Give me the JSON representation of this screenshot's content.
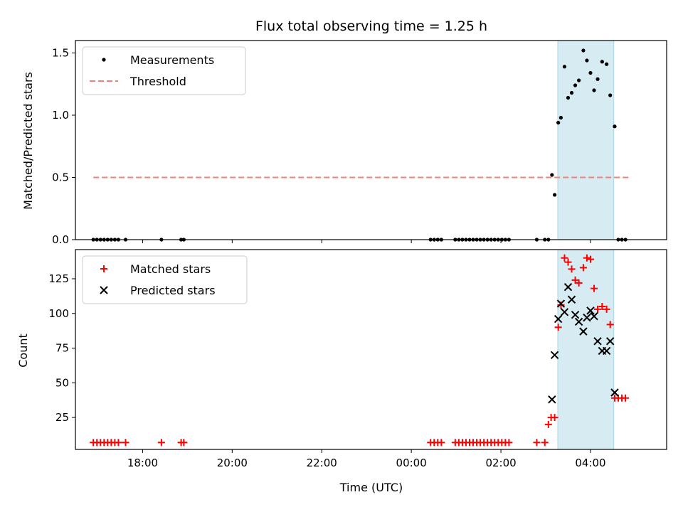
{
  "chart_data": [
    {
      "type": "scatter",
      "title": "Flux total observing time = 1.25 h",
      "xlabel": "",
      "ylabel": "Matched/Predicted stars",
      "x_unit": "hours since 00:00 UTC",
      "xlim": [
        -7.5,
        5.7
      ],
      "ylim": [
        0,
        1.6
      ],
      "yticks": [
        0.0,
        0.5,
        1.0,
        1.5
      ],
      "ytick_labels": [
        "0.0",
        "0.5",
        "1.0",
        "1.5"
      ],
      "highlight_span": [
        3.27,
        4.52
      ],
      "legend": {
        "placement": "top-left",
        "entries": [
          "Measurements",
          "Threshold"
        ]
      },
      "threshold": {
        "name": "Threshold",
        "y": 0.5,
        "x_range": [
          -7.1,
          4.85
        ],
        "color": "#f08080"
      },
      "series": [
        {
          "name": "Measurements",
          "color": "#000000",
          "x": [
            -7.1,
            -7.02,
            -6.94,
            -6.86,
            -6.78,
            -6.7,
            -6.62,
            -6.54,
            -6.38,
            -5.58,
            -5.14,
            -5.08,
            0.43,
            0.51,
            0.59,
            0.67,
            0.98,
            1.06,
            1.14,
            1.22,
            1.3,
            1.38,
            1.46,
            1.54,
            1.62,
            1.7,
            1.78,
            1.86,
            1.94,
            2.02,
            2.1,
            2.18,
            2.8,
            2.98,
            3.06,
            3.14,
            3.2,
            3.28,
            3.34,
            3.42,
            3.5,
            3.58,
            3.66,
            3.74,
            3.84,
            3.92,
            4.0,
            4.08,
            4.16,
            4.26,
            4.36,
            4.44,
            4.54,
            4.62,
            4.7,
            4.78
          ],
          "y": [
            0,
            0,
            0,
            0,
            0,
            0,
            0,
            0,
            0,
            0,
            0,
            0,
            0,
            0,
            0,
            0,
            0,
            0,
            0,
            0,
            0,
            0,
            0,
            0,
            0,
            0,
            0,
            0,
            0,
            0,
            0,
            0,
            0,
            0,
            0,
            0.52,
            0.36,
            0.94,
            0.98,
            1.39,
            1.14,
            1.18,
            1.24,
            1.28,
            1.52,
            1.44,
            1.34,
            1.2,
            1.29,
            1.43,
            1.41,
            1.16,
            0.91,
            0,
            0,
            0
          ]
        }
      ]
    },
    {
      "type": "scatter",
      "title": "",
      "xlabel": "Time (UTC)",
      "ylabel": "Count",
      "x_unit": "hours since 00:00 UTC",
      "xlim": [
        -7.5,
        5.7
      ],
      "ylim": [
        2,
        146
      ],
      "xticks": [
        -6,
        -4,
        -2,
        0,
        2,
        4
      ],
      "xtick_labels": [
        "18:00",
        "20:00",
        "22:00",
        "00:00",
        "02:00",
        "04:00"
      ],
      "yticks": [
        25,
        50,
        75,
        100,
        125
      ],
      "ytick_labels": [
        "25",
        "50",
        "75",
        "100",
        "125"
      ],
      "highlight_span": [
        3.27,
        4.52
      ],
      "legend": {
        "placement": "top-left",
        "entries": [
          "Matched stars",
          "Predicted stars"
        ]
      },
      "series": [
        {
          "name": "Matched stars",
          "marker": "+",
          "color": "#ff0000",
          "x": [
            -7.1,
            -7.02,
            -6.94,
            -6.86,
            -6.78,
            -6.7,
            -6.62,
            -6.54,
            -6.38,
            -5.58,
            -5.14,
            -5.08,
            0.43,
            0.51,
            0.59,
            0.67,
            0.98,
            1.06,
            1.14,
            1.22,
            1.3,
            1.38,
            1.46,
            1.54,
            1.62,
            1.7,
            1.78,
            1.86,
            1.94,
            2.02,
            2.1,
            2.18,
            2.8,
            2.98,
            3.06,
            3.12,
            3.2,
            3.28,
            3.34,
            3.42,
            3.5,
            3.58,
            3.66,
            3.74,
            3.84,
            3.92,
            4.0,
            4.08,
            4.16,
            4.26,
            4.36,
            4.44,
            4.54,
            4.62,
            4.7,
            4.78
          ],
          "y": [
            7,
            7,
            7,
            7,
            7,
            7,
            7,
            7,
            7,
            7,
            7,
            7,
            7,
            7,
            7,
            7,
            7,
            7,
            7,
            7,
            7,
            7,
            7,
            7,
            7,
            7,
            7,
            7,
            7,
            7,
            7,
            7,
            7,
            7,
            20,
            25,
            25,
            90,
            106,
            140,
            137,
            132,
            124,
            122,
            133,
            140,
            139,
            118,
            103,
            105,
            103,
            92,
            39,
            39,
            39,
            39
          ]
        },
        {
          "name": "Predicted stars",
          "marker": "x",
          "color": "#000000",
          "x": [
            3.14,
            3.2,
            3.28,
            3.34,
            3.42,
            3.5,
            3.58,
            3.66,
            3.74,
            3.84,
            3.92,
            4.0,
            4.08,
            4.16,
            4.26,
            4.36,
            4.44,
            4.54
          ],
          "y": [
            38,
            70,
            96,
            107,
            101,
            119,
            110,
            99,
            94,
            87,
            97,
            102,
            98,
            80,
            73,
            73,
            80,
            43
          ]
        }
      ]
    }
  ]
}
